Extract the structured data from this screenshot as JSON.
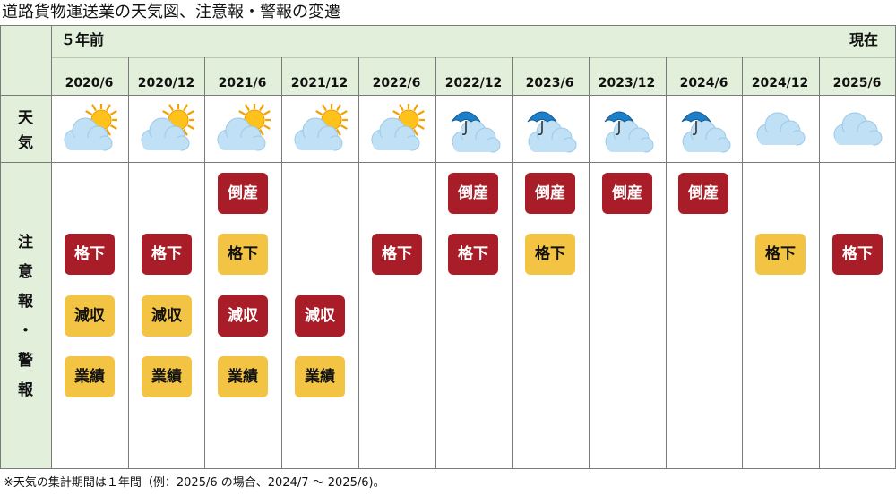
{
  "title": "道路貨物運送業の天気図、注意報・警報の変遷",
  "footnote": "※天気の集計期間は１年間（例：2025/6 の場合、2024/7 ～ 2025/6)。",
  "header": {
    "left_label": "５年前",
    "right_label": "現在"
  },
  "row_labels": {
    "weather": [
      "天",
      "気"
    ],
    "warnings": [
      "注",
      "意",
      "報",
      "・",
      "警",
      "報"
    ]
  },
  "colors": {
    "header_bg": "#e2efda",
    "red": "#a81d28",
    "yellow": "#f3c444",
    "grid": "#7a7a7a"
  },
  "chart_data": {
    "type": "table",
    "title": "道路貨物運送業の天気図、注意報・警報の変遷",
    "periods": [
      "2020/6",
      "2020/12",
      "2021/6",
      "2021/12",
      "2022/6",
      "2022/12",
      "2023/6",
      "2023/12",
      "2024/6",
      "2024/12",
      "2025/6"
    ],
    "weather": [
      "sun-cloud-icon",
      "sun-cloud-icon",
      "sun-cloud-icon",
      "sun-cloud-icon",
      "sun-cloud-icon",
      "umbrella-cloud-icon",
      "umbrella-cloud-icon",
      "umbrella-cloud-icon",
      "umbrella-cloud-icon",
      "cloud-icon",
      "cloud-icon"
    ],
    "alert_rows": [
      "倒産",
      "格下",
      "減収",
      "業績"
    ],
    "alerts": [
      {
        "倒産": null,
        "格下": "red",
        "減収": "yellow",
        "業績": "yellow"
      },
      {
        "倒産": null,
        "格下": "red",
        "減収": "yellow",
        "業績": "yellow"
      },
      {
        "倒産": "red",
        "格下": "yellow",
        "減収": "red",
        "業績": "yellow"
      },
      {
        "倒産": null,
        "格下": null,
        "減収": "red",
        "業績": "yellow"
      },
      {
        "倒産": null,
        "格下": "red",
        "減収": null,
        "業績": null
      },
      {
        "倒産": "red",
        "格下": "red",
        "減収": null,
        "業績": null
      },
      {
        "倒産": "red",
        "格下": "yellow",
        "減収": null,
        "業績": null
      },
      {
        "倒産": "red",
        "格下": null,
        "減収": null,
        "業績": null
      },
      {
        "倒産": "red",
        "格下": null,
        "減収": null,
        "業績": null
      },
      {
        "倒産": null,
        "格下": "yellow",
        "減収": null,
        "業績": null
      },
      {
        "倒産": null,
        "格下": "red",
        "減収": null,
        "業績": null
      }
    ]
  }
}
